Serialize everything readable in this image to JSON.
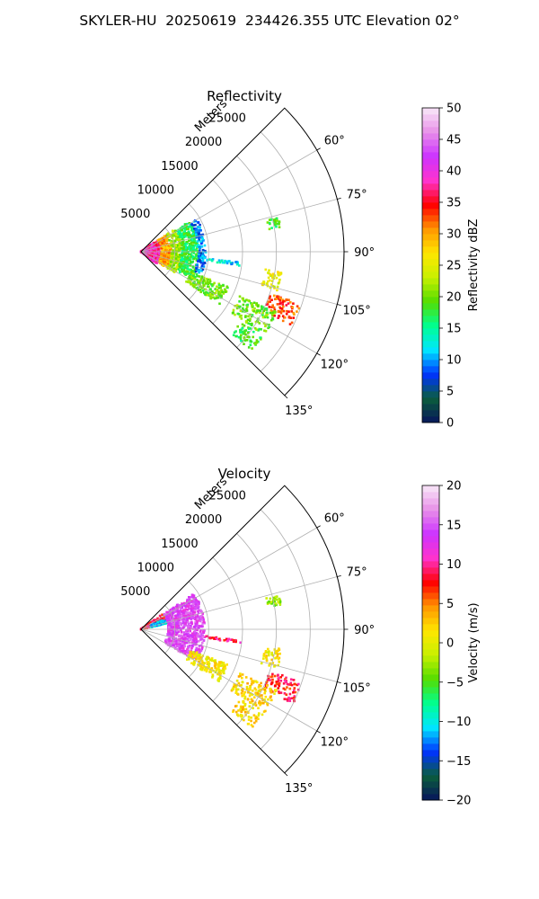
{
  "suptitle": "SKYLER-HU  20250619  234426.355 UTC Elevation 02°",
  "chart_data": [
    {
      "type": "polar-sector",
      "title": "Reflectivity",
      "radial_label": "Meters",
      "range_max_m": 30000,
      "radial_ticks": [
        "5000",
        "10000",
        "15000",
        "20000",
        "25000"
      ],
      "azimuth_range_deg": [
        45,
        135
      ],
      "azimuth_ticks": [
        "60°",
        "75°",
        "90°",
        "105°",
        "120°",
        "135°"
      ],
      "grid": true,
      "colorbar": {
        "label": "Reflectivity dBZ",
        "min": 0,
        "max": 50,
        "ticks": [
          "0",
          "5",
          "10",
          "15",
          "20",
          "25",
          "30",
          "35",
          "40",
          "45",
          "50"
        ],
        "stops": [
          "#08155c",
          "#0b5e3c",
          "#0033ff",
          "#00e5ff",
          "#00ff90",
          "#55dd00",
          "#c8f000",
          "#ffe600",
          "#ff9500",
          "#ff0000",
          "#ff33cc",
          "#cc33ff",
          "#e890e8",
          "#f8e8f8"
        ]
      },
      "echo_regions": [
        {
          "az": [
            54,
            128
          ],
          "r_m": [
            0,
            3000
          ],
          "value": 38
        },
        {
          "az": [
            56,
            122
          ],
          "r_m": [
            3000,
            4500
          ],
          "value": 30
        },
        {
          "az": [
            56,
            122
          ],
          "r_m": [
            4500,
            6000
          ],
          "value": 22
        },
        {
          "az": [
            58,
            118
          ],
          "r_m": [
            6000,
            8500
          ],
          "value": 17
        },
        {
          "az": [
            60,
            110
          ],
          "r_m": [
            8500,
            9600
          ],
          "value": 9
        },
        {
          "az": [
            96,
            98
          ],
          "r_m": [
            9500,
            15000
          ],
          "value": 12
        },
        {
          "az": [
            112,
            124
          ],
          "r_m": [
            8000,
            14000
          ],
          "value": 20
        },
        {
          "az": [
            76,
            80
          ],
          "r_m": [
            19000,
            21000
          ],
          "value": 18
        },
        {
          "az": [
            98,
            106
          ],
          "r_m": [
            18500,
            21000
          ],
          "value": 25
        },
        {
          "az": [
            108,
            116
          ],
          "r_m": [
            20000,
            25000
          ],
          "value": 33
        },
        {
          "az": [
            114,
            124
          ],
          "r_m": [
            16000,
            22000
          ],
          "value": 20
        },
        {
          "az": [
            125,
            132
          ],
          "r_m": [
            18000,
            22000
          ],
          "value": 18
        }
      ]
    },
    {
      "type": "polar-sector",
      "title": "Velocity",
      "radial_label": "Meters",
      "range_max_m": 30000,
      "radial_ticks": [
        "5000",
        "10000",
        "15000",
        "20000",
        "25000"
      ],
      "azimuth_range_deg": [
        45,
        135
      ],
      "azimuth_ticks": [
        "60°",
        "75°",
        "90°",
        "105°",
        "120°",
        "135°"
      ],
      "grid": true,
      "colorbar": {
        "label": "Velocity (m/s)",
        "min": -20,
        "max": 20,
        "ticks": [
          "−20",
          "−15",
          "−10",
          "−5",
          "0",
          "5",
          "10",
          "15",
          "20"
        ],
        "stops": [
          "#08155c",
          "#0b5e3c",
          "#0033ff",
          "#00e5ff",
          "#00ff90",
          "#55dd00",
          "#c8f000",
          "#ffe600",
          "#ff9500",
          "#ff0000",
          "#ff33cc",
          "#cc33ff",
          "#e890e8",
          "#f8e8f8"
        ]
      },
      "echo_regions": [
        {
          "az": [
            54,
            75
          ],
          "r_m": [
            0,
            4000
          ],
          "value": 8
        },
        {
          "az": [
            66,
            78
          ],
          "r_m": [
            1500,
            4000
          ],
          "value": -11
        },
        {
          "az": [
            56,
            120
          ],
          "r_m": [
            4000,
            9500
          ],
          "value": 14
        },
        {
          "az": [
            96,
            98
          ],
          "r_m": [
            9500,
            15000
          ],
          "value": 9
        },
        {
          "az": [
            112,
            124
          ],
          "r_m": [
            8000,
            14000
          ],
          "value": 1
        },
        {
          "az": [
            76,
            80
          ],
          "r_m": [
            19000,
            21000
          ],
          "value": -3
        },
        {
          "az": [
            98,
            106
          ],
          "r_m": [
            18500,
            21000
          ],
          "value": 1
        },
        {
          "az": [
            108,
            116
          ],
          "r_m": [
            20000,
            25000
          ],
          "value": 8
        },
        {
          "az": [
            114,
            124
          ],
          "r_m": [
            16000,
            22000
          ],
          "value": 2
        },
        {
          "az": [
            125,
            132
          ],
          "r_m": [
            18000,
            22000
          ],
          "value": 2
        }
      ]
    }
  ]
}
